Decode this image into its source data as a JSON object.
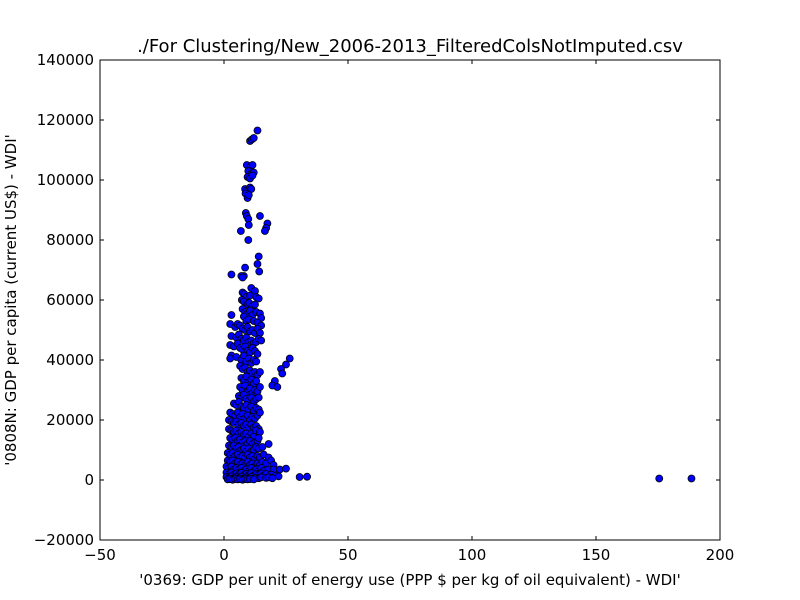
{
  "chart_data": {
    "type": "scatter",
    "title": "./For Clustering/New_2006-2013_FilteredColsNotImputed.csv",
    "xlabel": "'0369: GDP per unit of energy use  (PPP $ per kg of oil equivalent) - WDI'",
    "ylabel": "'0808N: GDP per capita  (current US$) - WDI'",
    "xlim": [
      -50,
      200
    ],
    "ylim": [
      -20000,
      140000
    ],
    "xticks": [
      -50,
      0,
      50,
      100,
      150,
      200
    ],
    "yticks": [
      -20000,
      0,
      20000,
      40000,
      60000,
      80000,
      100000,
      120000,
      140000
    ],
    "xtick_labels": [
      "−50",
      "0",
      "50",
      "100",
      "150",
      "200"
    ],
    "ytick_labels": [
      "−20000",
      "0",
      "20000",
      "40000",
      "60000",
      "80000",
      "100000",
      "120000",
      "140000"
    ],
    "grid": false,
    "marker_color": "#0000ff",
    "points": [
      [
        13.5,
        116500
      ],
      [
        10.5,
        113000
      ],
      [
        11.2,
        113500
      ],
      [
        12.0,
        114000
      ],
      [
        9.2,
        105000
      ],
      [
        10.8,
        104500
      ],
      [
        11.5,
        105000
      ],
      [
        9.8,
        103000
      ],
      [
        11.0,
        102000
      ],
      [
        12.0,
        102500
      ],
      [
        9.5,
        101000
      ],
      [
        10.5,
        100500
      ],
      [
        11.5,
        101500
      ],
      [
        8.5,
        97000
      ],
      [
        9.2,
        96500
      ],
      [
        10.5,
        97500
      ],
      [
        11.0,
        97000
      ],
      [
        8.7,
        95500
      ],
      [
        9.5,
        94000
      ],
      [
        10.0,
        95000
      ],
      [
        8.8,
        89000
      ],
      [
        9.2,
        88000
      ],
      [
        9.8,
        87000
      ],
      [
        10.0,
        85000
      ],
      [
        14.5,
        88000
      ],
      [
        17.5,
        85500
      ],
      [
        17.0,
        84000
      ],
      [
        16.5,
        83000
      ],
      [
        6.8,
        83000
      ],
      [
        9.8,
        80000
      ],
      [
        14.0,
        74500
      ],
      [
        13.5,
        72000
      ],
      [
        14.2,
        69500
      ],
      [
        8.5,
        70800
      ],
      [
        8.0,
        68000
      ],
      [
        7.0,
        68000
      ],
      [
        3.0,
        68500
      ],
      [
        7.5,
        67500
      ],
      [
        11.0,
        64000
      ],
      [
        12.5,
        63000
      ],
      [
        7.5,
        62500
      ],
      [
        8.2,
        62000
      ],
      [
        9.0,
        61000
      ],
      [
        10.5,
        61500
      ],
      [
        13.0,
        61000
      ],
      [
        14.0,
        60500
      ],
      [
        7.2,
        60000
      ],
      [
        8.0,
        59500
      ],
      [
        9.5,
        58500
      ],
      [
        10.2,
        59000
      ],
      [
        11.5,
        58000
      ],
      [
        12.5,
        58500
      ],
      [
        7.5,
        57000
      ],
      [
        8.5,
        56000
      ],
      [
        9.5,
        55500
      ],
      [
        10.5,
        56500
      ],
      [
        11.5,
        55000
      ],
      [
        13.0,
        56000
      ],
      [
        14.5,
        55500
      ],
      [
        15.0,
        54000
      ],
      [
        3.0,
        55000
      ],
      [
        8.0,
        54500
      ],
      [
        9.0,
        53000
      ],
      [
        10.0,
        53500
      ],
      [
        12.0,
        53000
      ],
      [
        13.5,
        52500
      ],
      [
        15.0,
        51500
      ],
      [
        2.5,
        52000
      ],
      [
        4.5,
        51000
      ],
      [
        5.5,
        52000
      ],
      [
        6.5,
        51500
      ],
      [
        7.5,
        50500
      ],
      [
        8.5,
        50000
      ],
      [
        9.5,
        51000
      ],
      [
        10.5,
        49500
      ],
      [
        11.5,
        50000
      ],
      [
        12.5,
        49000
      ],
      [
        13.5,
        50500
      ],
      [
        14.5,
        49000
      ],
      [
        3.0,
        48000
      ],
      [
        5.0,
        47500
      ],
      [
        6.0,
        48500
      ],
      [
        7.0,
        47000
      ],
      [
        8.0,
        46500
      ],
      [
        9.0,
        47500
      ],
      [
        10.0,
        46000
      ],
      [
        11.0,
        46500
      ],
      [
        12.0,
        45500
      ],
      [
        13.0,
        46000
      ],
      [
        14.0,
        47000
      ],
      [
        15.0,
        46500
      ],
      [
        2.5,
        45000
      ],
      [
        4.0,
        44500
      ],
      [
        5.5,
        45500
      ],
      [
        6.5,
        44000
      ],
      [
        7.5,
        43500
      ],
      [
        8.5,
        44500
      ],
      [
        9.5,
        43000
      ],
      [
        10.5,
        42500
      ],
      [
        11.5,
        44000
      ],
      [
        12.5,
        43000
      ],
      [
        13.5,
        42000
      ],
      [
        3.0,
        41500
      ],
      [
        2.5,
        40500
      ],
      [
        5.0,
        41000
      ],
      [
        7.0,
        40000
      ],
      [
        8.0,
        41500
      ],
      [
        9.0,
        39500
      ],
      [
        10.0,
        40500
      ],
      [
        11.0,
        39000
      ],
      [
        12.0,
        40000
      ],
      [
        13.0,
        39500
      ],
      [
        26.5,
        40500
      ],
      [
        25.0,
        38500
      ],
      [
        23.0,
        37000
      ],
      [
        23.5,
        35500
      ],
      [
        20.5,
        33000
      ],
      [
        19.5,
        31500
      ],
      [
        21.5,
        31000
      ],
      [
        6.5,
        38000
      ],
      [
        7.5,
        37000
      ],
      [
        8.5,
        37500
      ],
      [
        9.5,
        36000
      ],
      [
        10.5,
        36500
      ],
      [
        11.5,
        35500
      ],
      [
        12.5,
        36000
      ],
      [
        13.5,
        35000
      ],
      [
        14.5,
        36000
      ],
      [
        7.0,
        34000
      ],
      [
        8.0,
        33000
      ],
      [
        9.0,
        34500
      ],
      [
        10.0,
        32500
      ],
      [
        11.0,
        33500
      ],
      [
        12.0,
        32000
      ],
      [
        13.0,
        33000
      ],
      [
        6.5,
        31000
      ],
      [
        7.5,
        30000
      ],
      [
        8.5,
        31500
      ],
      [
        9.5,
        29500
      ],
      [
        10.5,
        30500
      ],
      [
        11.5,
        29000
      ],
      [
        12.5,
        30000
      ],
      [
        13.5,
        29500
      ],
      [
        14.5,
        31000
      ],
      [
        6.0,
        28000
      ],
      [
        7.0,
        27500
      ],
      [
        8.0,
        28500
      ],
      [
        9.0,
        27000
      ],
      [
        10.0,
        26500
      ],
      [
        11.0,
        27500
      ],
      [
        12.0,
        26000
      ],
      [
        13.0,
        27000
      ],
      [
        14.0,
        27500
      ],
      [
        4.0,
        25500
      ],
      [
        5.0,
        25000
      ],
      [
        6.0,
        26000
      ],
      [
        7.0,
        24500
      ],
      [
        8.0,
        24000
      ],
      [
        9.0,
        25000
      ],
      [
        10.0,
        23500
      ],
      [
        11.0,
        24500
      ],
      [
        12.0,
        23000
      ],
      [
        13.0,
        24000
      ],
      [
        14.0,
        23500
      ],
      [
        2.5,
        22500
      ],
      [
        3.5,
        22000
      ],
      [
        4.5,
        21500
      ],
      [
        5.5,
        22500
      ],
      [
        6.5,
        21000
      ],
      [
        7.5,
        22000
      ],
      [
        8.5,
        20500
      ],
      [
        9.5,
        21500
      ],
      [
        10.5,
        20000
      ],
      [
        11.5,
        21000
      ],
      [
        12.5,
        20500
      ],
      [
        13.5,
        21500
      ],
      [
        14.5,
        22500
      ],
      [
        2.0,
        20000
      ],
      [
        3.0,
        19500
      ],
      [
        4.0,
        19000
      ],
      [
        5.0,
        19500
      ],
      [
        6.0,
        18500
      ],
      [
        7.0,
        19000
      ],
      [
        8.0,
        18000
      ],
      [
        9.0,
        18500
      ],
      [
        10.0,
        17500
      ],
      [
        11.0,
        18500
      ],
      [
        12.0,
        17500
      ],
      [
        13.0,
        18000
      ],
      [
        14.0,
        17000
      ],
      [
        2.0,
        17000
      ],
      [
        3.0,
        16500
      ],
      [
        4.0,
        16000
      ],
      [
        5.0,
        16500
      ],
      [
        6.0,
        15500
      ],
      [
        7.0,
        16000
      ],
      [
        8.0,
        15000
      ],
      [
        9.0,
        15500
      ],
      [
        10.0,
        14500
      ],
      [
        11.0,
        15500
      ],
      [
        12.0,
        14500
      ],
      [
        13.0,
        16500
      ],
      [
        14.5,
        16000
      ],
      [
        2.5,
        14000
      ],
      [
        3.5,
        13500
      ],
      [
        4.5,
        14000
      ],
      [
        5.5,
        13000
      ],
      [
        6.5,
        13500
      ],
      [
        7.5,
        12500
      ],
      [
        8.5,
        13000
      ],
      [
        9.5,
        12000
      ],
      [
        10.5,
        13000
      ],
      [
        11.5,
        12000
      ],
      [
        12.5,
        12500
      ],
      [
        13.5,
        13000
      ],
      [
        14.0,
        14000
      ],
      [
        2.0,
        11500
      ],
      [
        3.0,
        11000
      ],
      [
        4.0,
        11500
      ],
      [
        5.0,
        10500
      ],
      [
        6.0,
        11000
      ],
      [
        7.0,
        10000
      ],
      [
        8.0,
        10500
      ],
      [
        9.0,
        9500
      ],
      [
        10.0,
        10500
      ],
      [
        11.0,
        9500
      ],
      [
        12.0,
        10000
      ],
      [
        13.0,
        11000
      ],
      [
        14.0,
        10500
      ],
      [
        15.5,
        11000
      ],
      [
        18.0,
        12000
      ],
      [
        1.5,
        9000
      ],
      [
        2.5,
        8500
      ],
      [
        3.5,
        9000
      ],
      [
        4.5,
        8000
      ],
      [
        5.5,
        8500
      ],
      [
        6.5,
        7500
      ],
      [
        7.5,
        8000
      ],
      [
        8.5,
        7500
      ],
      [
        9.5,
        8500
      ],
      [
        10.5,
        7500
      ],
      [
        11.5,
        8000
      ],
      [
        12.5,
        7000
      ],
      [
        13.5,
        8000
      ],
      [
        14.5,
        7500
      ],
      [
        16.0,
        8500
      ],
      [
        18.0,
        7500
      ],
      [
        1.5,
        6500
      ],
      [
        2.5,
        6000
      ],
      [
        3.5,
        6500
      ],
      [
        4.5,
        5500
      ],
      [
        5.5,
        6000
      ],
      [
        6.5,
        5000
      ],
      [
        7.5,
        5500
      ],
      [
        8.5,
        5000
      ],
      [
        9.5,
        6000
      ],
      [
        10.5,
        5000
      ],
      [
        11.5,
        5500
      ],
      [
        12.5,
        4500
      ],
      [
        13.5,
        5500
      ],
      [
        14.5,
        5000
      ],
      [
        15.5,
        6000
      ],
      [
        17.0,
        5500
      ],
      [
        19.0,
        6500
      ],
      [
        20.0,
        5000
      ],
      [
        1.0,
        4500
      ],
      [
        2.0,
        4000
      ],
      [
        3.0,
        4500
      ],
      [
        4.0,
        3500
      ],
      [
        5.0,
        4000
      ],
      [
        6.0,
        3500
      ],
      [
        7.0,
        4000
      ],
      [
        8.0,
        3000
      ],
      [
        9.0,
        3500
      ],
      [
        10.0,
        3000
      ],
      [
        11.0,
        4000
      ],
      [
        12.0,
        3000
      ],
      [
        13.0,
        3500
      ],
      [
        14.0,
        3000
      ],
      [
        15.0,
        4000
      ],
      [
        16.0,
        3000
      ],
      [
        18.0,
        3500
      ],
      [
        20.0,
        3500
      ],
      [
        22.5,
        3500
      ],
      [
        25.0,
        3800
      ],
      [
        1.0,
        2500
      ],
      [
        2.0,
        2000
      ],
      [
        3.0,
        2500
      ],
      [
        4.0,
        1800
      ],
      [
        5.0,
        2200
      ],
      [
        6.0,
        1800
      ],
      [
        7.0,
        2400
      ],
      [
        8.0,
        1600
      ],
      [
        9.0,
        2000
      ],
      [
        10.0,
        1700
      ],
      [
        11.0,
        2300
      ],
      [
        12.0,
        1500
      ],
      [
        13.0,
        2000
      ],
      [
        14.0,
        1800
      ],
      [
        15.0,
        2200
      ],
      [
        16.0,
        1500
      ],
      [
        17.0,
        2000
      ],
      [
        19.0,
        1800
      ],
      [
        21.0,
        1500
      ],
      [
        22.0,
        1200
      ],
      [
        1.0,
        1000
      ],
      [
        2.0,
        800
      ],
      [
        3.0,
        1200
      ],
      [
        4.0,
        600
      ],
      [
        5.0,
        1000
      ],
      [
        6.0,
        700
      ],
      [
        7.0,
        1100
      ],
      [
        8.0,
        500
      ],
      [
        9.0,
        900
      ],
      [
        10.0,
        600
      ],
      [
        11.0,
        1000
      ],
      [
        12.0,
        500
      ],
      [
        13.0,
        800
      ],
      [
        14.0,
        600
      ],
      [
        15.0,
        900
      ],
      [
        17.0,
        700
      ],
      [
        18.0,
        900
      ],
      [
        19.5,
        600
      ],
      [
        1.5,
        200
      ],
      [
        2.5,
        300
      ],
      [
        3.5,
        100
      ],
      [
        4.5,
        300
      ],
      [
        5.5,
        200
      ],
      [
        6.5,
        300
      ],
      [
        7.5,
        100
      ],
      [
        8.5,
        300
      ],
      [
        9.5,
        200
      ],
      [
        10.5,
        300
      ],
      [
        12.0,
        200
      ],
      [
        30.5,
        1000
      ],
      [
        33.5,
        1100
      ],
      [
        175.5,
        500
      ],
      [
        188.5,
        500
      ]
    ]
  }
}
